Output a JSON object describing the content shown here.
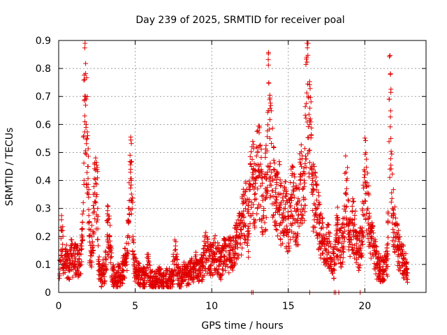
{
  "chart_data": {
    "type": "scatter",
    "title": "Day 239 of 2025, SRMTID for receiver poal",
    "xlabel": "GPS time / hours",
    "ylabel": "SRMTID / TECUs",
    "xlim": [
      0,
      24
    ],
    "ylim": [
      0,
      0.9
    ],
    "xticks": [
      0,
      5,
      10,
      15,
      20
    ],
    "xtick_labels": [
      "0",
      "5",
      "10",
      "15",
      "20"
    ],
    "yticks": [
      0,
      0.1,
      0.2,
      0.3,
      0.4,
      0.5,
      0.6,
      0.7,
      0.8,
      0.9
    ],
    "ytick_labels": [
      "0",
      "0.1",
      "0.2",
      "0.3",
      "0.4",
      "0.5",
      "0.6",
      "0.7",
      "0.8",
      "0.9"
    ],
    "grid": true,
    "marker": "+",
    "color": "#e00000",
    "series": [
      {
        "name": "SRMTID",
        "x": [
          0.05,
          0.2,
          0.35,
          0.5,
          0.65,
          0.8,
          0.95,
          1.1,
          1.25,
          1.4,
          1.55,
          1.7,
          1.75,
          1.8,
          1.85,
          1.9,
          1.95,
          2.0,
          2.1,
          2.2,
          2.3,
          2.4,
          2.5,
          2.55,
          2.6,
          2.7,
          2.8,
          2.9,
          3.0,
          3.1,
          3.2,
          3.3,
          3.4,
          3.5,
          3.6,
          3.7,
          3.8,
          3.9,
          4.0,
          4.1,
          4.2,
          4.3,
          4.4,
          4.5,
          4.6,
          4.7,
          4.75,
          4.8,
          4.85,
          4.9,
          5.0,
          5.2,
          5.4,
          5.6,
          5.8,
          6.0,
          6.2,
          6.4,
          6.6,
          6.8,
          7.0,
          7.2,
          7.4,
          7.6,
          7.8,
          8.0,
          8.2,
          8.4,
          8.6,
          8.8,
          9.0,
          9.2,
          9.4,
          9.6,
          9.8,
          10.0,
          10.2,
          10.4,
          10.6,
          10.8,
          11.0,
          11.2,
          11.4,
          11.6,
          11.8,
          12.0,
          12.2,
          12.4,
          12.6,
          12.8,
          13.0,
          13.2,
          13.4,
          13.6,
          13.7,
          13.8,
          14.0,
          14.2,
          14.4,
          14.6,
          14.8,
          15.0,
          15.2,
          15.4,
          15.6,
          15.8,
          16.0,
          16.1,
          16.2,
          16.3,
          16.4,
          16.6,
          16.8,
          17.0,
          17.2,
          17.4,
          17.6,
          17.8,
          18.0,
          18.2,
          18.4,
          18.6,
          18.8,
          19.0,
          19.2,
          19.4,
          19.6,
          19.8,
          20.0,
          20.2,
          20.4,
          20.6,
          20.8,
          21.0,
          21.2,
          21.4,
          21.5,
          21.6,
          21.7,
          21.8,
          22.0,
          22.2,
          22.4,
          22.6,
          22.8
        ],
        "y": [
          0.05,
          0.22,
          0.09,
          0.12,
          0.08,
          0.14,
          0.1,
          0.12,
          0.11,
          0.1,
          0.2,
          0.76,
          0.7,
          0.6,
          0.55,
          0.45,
          0.35,
          0.2,
          0.15,
          0.18,
          0.3,
          0.39,
          0.35,
          0.3,
          0.1,
          0.06,
          0.05,
          0.08,
          0.07,
          0.12,
          0.25,
          0.2,
          0.15,
          0.08,
          0.06,
          0.05,
          0.04,
          0.07,
          0.06,
          0.05,
          0.08,
          0.1,
          0.12,
          0.15,
          0.3,
          0.44,
          0.4,
          0.3,
          0.2,
          0.12,
          0.08,
          0.07,
          0.06,
          0.05,
          0.1,
          0.05,
          0.04,
          0.05,
          0.06,
          0.04,
          0.05,
          0.05,
          0.04,
          0.15,
          0.06,
          0.05,
          0.07,
          0.06,
          0.08,
          0.07,
          0.1,
          0.08,
          0.09,
          0.15,
          0.12,
          0.11,
          0.14,
          0.12,
          0.1,
          0.13,
          0.12,
          0.15,
          0.14,
          0.18,
          0.2,
          0.25,
          0.3,
          0.22,
          0.45,
          0.35,
          0.5,
          0.38,
          0.3,
          0.42,
          0.65,
          0.55,
          0.4,
          0.3,
          0.35,
          0.25,
          0.3,
          0.2,
          0.35,
          0.3,
          0.25,
          0.4,
          0.3,
          0.46,
          0.84,
          0.7,
          0.6,
          0.35,
          0.3,
          0.25,
          0.2,
          0.15,
          0.18,
          0.12,
          0.1,
          0.22,
          0.15,
          0.2,
          0.4,
          0.18,
          0.25,
          0.2,
          0.15,
          0.18,
          0.42,
          0.3,
          0.2,
          0.15,
          0.1,
          0.09,
          0.08,
          0.1,
          0.12,
          0.69,
          0.55,
          0.3,
          0.2,
          0.15,
          0.13,
          0.1,
          0.07
        ],
        "zero_points_x": [
          12.6,
          12.7,
          16.4,
          18.0,
          18.1,
          18.3,
          19.7
        ]
      }
    ]
  }
}
